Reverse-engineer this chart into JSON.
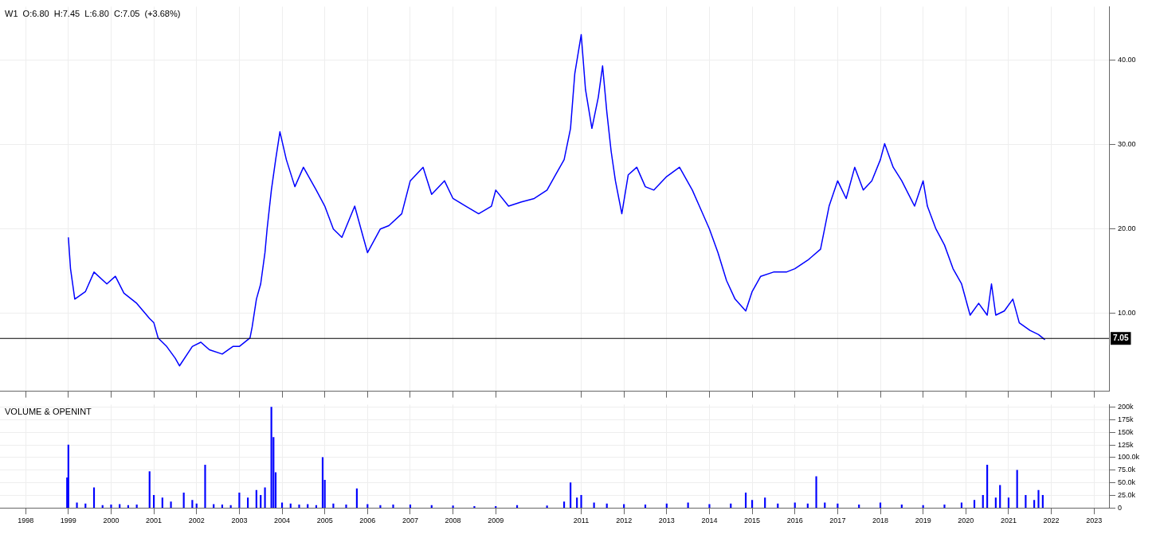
{
  "chart_data": [
    {
      "type": "line",
      "title": "W1  O:6.80  H:7.45  L:6.80  C:7.05  (+3.68%)",
      "xlim": [
        1997.4,
        2023.35
      ],
      "ylim": [
        0.8,
        46.3
      ],
      "xticks": [
        1998,
        1999,
        2000,
        2001,
        2002,
        2003,
        2004,
        2005,
        2006,
        2007,
        2008,
        2009,
        2011,
        2012,
        2013,
        2014,
        2015,
        2016,
        2017,
        2018,
        2019,
        2020,
        2021,
        2022,
        2023
      ],
      "yticks": [
        {
          "value": 10,
          "label": "10.00"
        },
        {
          "value": 20,
          "label": "20.00"
        },
        {
          "value": 30,
          "label": "30.00"
        },
        {
          "value": 40,
          "label": "40.00"
        }
      ],
      "tick_labels": "y",
      "grid": true,
      "legend": false,
      "marker": "none",
      "ref_lines": [
        {
          "axis": "y",
          "value": 7.05,
          "label": "7.05",
          "color": "#000000"
        }
      ],
      "series": [
        {
          "color": "#0000ff",
          "x": [
            1999.0,
            1999.05,
            1999.15,
            1999.4,
            1999.6,
            1999.9,
            2000.1,
            2000.3,
            2000.6,
            2000.75,
            2000.9,
            2001.0,
            2001.1,
            2001.3,
            2001.5,
            2001.6,
            2001.9,
            2002.1,
            2002.3,
            2002.6,
            2002.85,
            2003.0,
            2003.25,
            2003.3,
            2003.4,
            2003.5,
            2003.6,
            2003.65,
            2003.75,
            2003.85,
            2003.95,
            2004.1,
            2004.3,
            2004.5,
            2004.8,
            2005.0,
            2005.2,
            2005.4,
            2005.7,
            2005.9,
            2006.0,
            2006.3,
            2006.5,
            2006.8,
            2007.0,
            2007.3,
            2007.5,
            2007.8,
            2008.0,
            2008.3,
            2008.6,
            2008.9,
            2009.0,
            2009.3,
            2009.6,
            2009.9,
            2010.2,
            2010.4,
            2010.6,
            2010.75,
            2010.85,
            2011.0,
            2011.1,
            2011.25,
            2011.4,
            2011.5,
            2011.6,
            2011.7,
            2011.8,
            2011.95,
            2012.1,
            2012.3,
            2012.5,
            2012.7,
            2013.0,
            2013.3,
            2013.6,
            2013.8,
            2014.0,
            2014.2,
            2014.4,
            2014.6,
            2014.85,
            2015.0,
            2015.2,
            2015.5,
            2015.8,
            2016.0,
            2016.3,
            2016.6,
            2016.8,
            2017.0,
            2017.2,
            2017.4,
            2017.6,
            2017.8,
            2018.0,
            2018.1,
            2018.3,
            2018.5,
            2018.8,
            2019.0,
            2019.1,
            2019.3,
            2019.5,
            2019.7,
            2019.9,
            2020.1,
            2020.3,
            2020.5,
            2020.6,
            2020.7,
            2020.9,
            2021.1,
            2021.25,
            2021.5,
            2021.7,
            2021.85
          ],
          "values": [
            19,
            15.3,
            11.7,
            12.6,
            14.9,
            13.5,
            14.4,
            12.4,
            11.2,
            10.3,
            9.4,
            8.9,
            7.1,
            6.1,
            4.7,
            3.8,
            6.1,
            6.6,
            5.7,
            5.2,
            6.1,
            6.1,
            7.1,
            8.4,
            11.7,
            13.5,
            17.2,
            20,
            24.6,
            28.2,
            31.5,
            28.2,
            25,
            27.3,
            24.6,
            22.7,
            20,
            19,
            22.7,
            19,
            17.2,
            20,
            20.4,
            21.8,
            25.7,
            27.3,
            24.1,
            25.7,
            23.6,
            22.7,
            21.8,
            22.7,
            24.6,
            22.7,
            23.2,
            23.6,
            24.6,
            26.4,
            28.2,
            31.9,
            38.4,
            43,
            36.5,
            31.9,
            35.6,
            39.3,
            33.8,
            29.2,
            25.7,
            21.8,
            26.4,
            27.3,
            25,
            24.6,
            26.2,
            27.3,
            24.6,
            22.3,
            20,
            17.2,
            13.9,
            11.7,
            10.3,
            12.6,
            14.4,
            14.9,
            14.9,
            15.3,
            16.3,
            17.6,
            22.7,
            25.7,
            23.6,
            27.3,
            24.6,
            25.7,
            28.2,
            30.1,
            27.3,
            25.7,
            22.7,
            25.7,
            22.7,
            20,
            18.1,
            15.3,
            13.5,
            9.8,
            11.2,
            9.8,
            13.5,
            9.8,
            10.3,
            11.7,
            8.9,
            8,
            7.5,
            6.9
          ]
        }
      ]
    },
    {
      "type": "bar",
      "title": "VOLUME & OPENINT",
      "xlim": [
        1997.4,
        2023.35
      ],
      "ylim": [
        0,
        205000
      ],
      "xticks": [
        1998,
        1999,
        2000,
        2001,
        2002,
        2003,
        2004,
        2005,
        2006,
        2007,
        2008,
        2009,
        2011,
        2012,
        2013,
        2014,
        2015,
        2016,
        2017,
        2018,
        2019,
        2020,
        2021,
        2022,
        2023
      ],
      "yticks": [
        {
          "value": 0,
          "label": "0"
        },
        {
          "value": 25000,
          "label": "25.0k"
        },
        {
          "value": 50000,
          "label": "50.0k"
        },
        {
          "value": 75000,
          "label": "75.0k"
        },
        {
          "value": 100000,
          "label": "100.0k"
        },
        {
          "value": 125000,
          "label": "125k"
        },
        {
          "value": 150000,
          "label": "150k"
        },
        {
          "value": 175000,
          "label": "175k"
        },
        {
          "value": 200000,
          "label": "200k"
        }
      ],
      "grid": true,
      "legend": false,
      "series": [
        {
          "color": "#0000ff",
          "x": [
            1998.97,
            1999.0,
            1999.2,
            1999.4,
            1999.6,
            1999.8,
            2000.0,
            2000.2,
            2000.4,
            2000.6,
            2000.9,
            2001.0,
            2001.2,
            2001.4,
            2001.7,
            2001.9,
            2002.0,
            2002.2,
            2002.4,
            2002.6,
            2002.8,
            2003.0,
            2003.2,
            2003.4,
            2003.5,
            2003.6,
            2003.75,
            2003.8,
            2003.85,
            2004.0,
            2004.2,
            2004.4,
            2004.6,
            2004.8,
            2004.95,
            2005.0,
            2005.2,
            2005.5,
            2005.75,
            2006.0,
            2006.3,
            2006.6,
            2007.0,
            2007.5,
            2008.0,
            2008.5,
            2009.0,
            2009.5,
            2010.2,
            2010.6,
            2010.75,
            2010.9,
            2011.0,
            2011.3,
            2011.6,
            2012.0,
            2012.5,
            2013.0,
            2013.5,
            2014.0,
            2014.5,
            2014.85,
            2015.0,
            2015.3,
            2015.6,
            2016.0,
            2016.3,
            2016.5,
            2016.7,
            2017.0,
            2017.5,
            2018.0,
            2018.5,
            2019.0,
            2019.5,
            2019.9,
            2020.2,
            2020.4,
            2020.5,
            2020.7,
            2020.8,
            2021.0,
            2021.2,
            2021.4,
            2021.6,
            2021.7,
            2021.8
          ],
          "values": [
            60000,
            125000,
            10000,
            8000,
            40000,
            5000,
            6000,
            7000,
            5000,
            6000,
            72000,
            25000,
            20000,
            12000,
            30000,
            15000,
            8000,
            85000,
            7000,
            6000,
            5000,
            30000,
            20000,
            35000,
            25000,
            40000,
            200000,
            140000,
            70000,
            10000,
            8000,
            6000,
            7000,
            5000,
            100000,
            55000,
            8000,
            6000,
            38000,
            7000,
            5000,
            6000,
            6000,
            5000,
            4000,
            3000,
            3000,
            5000,
            4000,
            12000,
            50000,
            20000,
            25000,
            10000,
            8000,
            7000,
            6000,
            8000,
            10000,
            7000,
            8000,
            30000,
            15000,
            20000,
            8000,
            10000,
            8000,
            62000,
            10000,
            8000,
            6000,
            10000,
            6000,
            5000,
            6000,
            10000,
            15000,
            25000,
            85000,
            20000,
            45000,
            20000,
            75000,
            25000,
            15000,
            35000,
            25000
          ]
        }
      ]
    }
  ]
}
